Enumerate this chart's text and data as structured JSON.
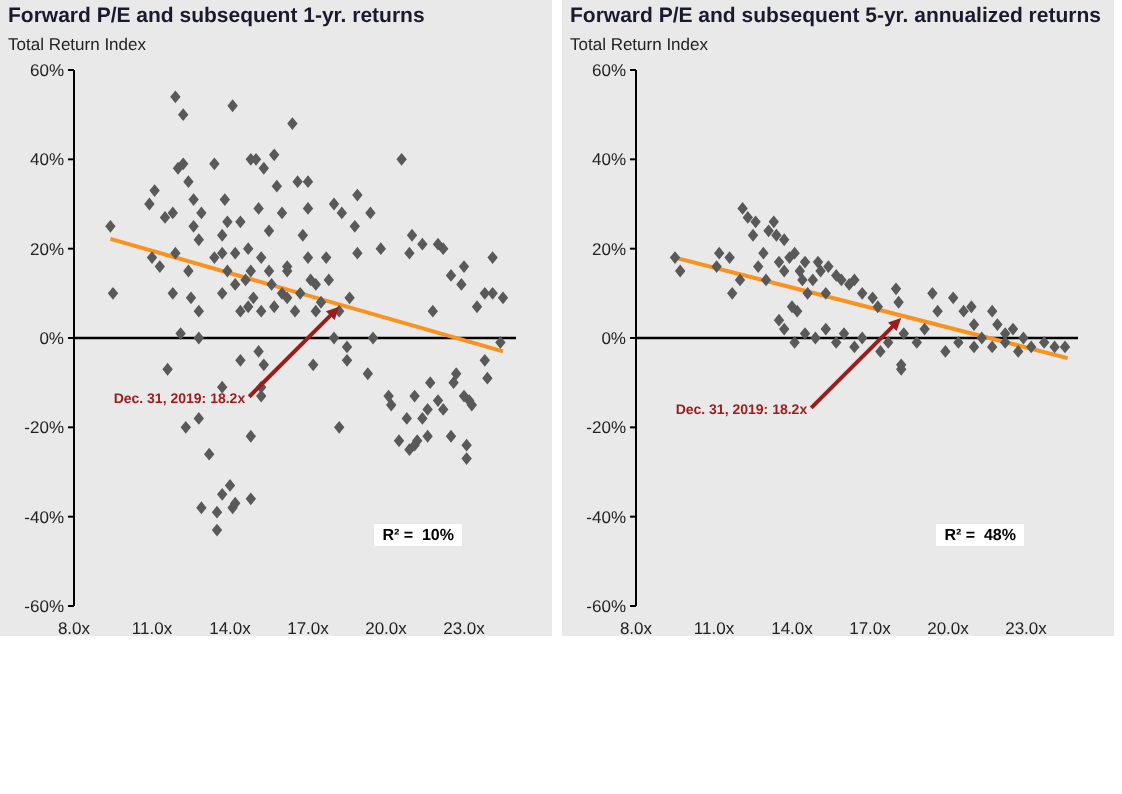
{
  "chart_data": [
    {
      "type": "scatter",
      "title": "Forward P/E and subsequent 1-yr. returns",
      "subtitle": "Total Return Index",
      "xlim": [
        8,
        25
      ],
      "xticks": [
        {
          "value": 8,
          "label": "8.0x"
        },
        {
          "value": 11,
          "label": "11.0x"
        },
        {
          "value": 14,
          "label": "14.0x"
        },
        {
          "value": 17,
          "label": "17.0x"
        },
        {
          "value": 20,
          "label": "20.0x"
        },
        {
          "value": 23,
          "label": "23.0x"
        }
      ],
      "ylim": [
        -60,
        60
      ],
      "yticks": [
        {
          "value": -60,
          "label": "-60%"
        },
        {
          "value": -40,
          "label": "-40%"
        },
        {
          "value": -20,
          "label": "-20%"
        },
        {
          "value": 0,
          "label": "0%"
        },
        {
          "value": 20,
          "label": "20%"
        },
        {
          "value": 40,
          "label": "40%"
        },
        {
          "value": 60,
          "label": "60%"
        }
      ],
      "ref_lines": [
        {
          "axis": "y",
          "value": 0,
          "color": "#000000"
        }
      ],
      "annotations": [
        {
          "text": "Dec. 31, 2019: 18.2x",
          "x": 18.2,
          "y": 7
        },
        "R² =  10%"
      ],
      "series": [
        {
          "type": "scatter",
          "marker": "diamond",
          "color": "#595959",
          "x": [
            9.4,
            9.5,
            10.9,
            11.1,
            11,
            11.3,
            11.5,
            11.8,
            11.9,
            11.8,
            12,
            12.2,
            11.9,
            12.2,
            12.4,
            12.6,
            12.6,
            12.9,
            12.8,
            12.4,
            12.5,
            12.8,
            13.4,
            13.4,
            13.7,
            13.8,
            13.9,
            14.1,
            14.2,
            14.4,
            14.6,
            14.7,
            14.8,
            15,
            15.1,
            15.2,
            15.3,
            15.5,
            15.6,
            15.7,
            15.8,
            16,
            16.2,
            16.2,
            16.4,
            16.6,
            16.8,
            17,
            17,
            17,
            17.1,
            17.3,
            17.7,
            17.8,
            18,
            18.2,
            18.3,
            18.6,
            18.8,
            18.9,
            18.9,
            19.4,
            19.8,
            20.6,
            20.9,
            21,
            21.4,
            21.8,
            22,
            22.2,
            22.5,
            22.9,
            23,
            23.5,
            23.8,
            24.1,
            24.1,
            24.5,
            13.7,
            14.2,
            14.4,
            14.8,
            14.9,
            15.2,
            15.5,
            15.7,
            16,
            16.2,
            16.5,
            16.7,
            17.3,
            17.5,
            13.7,
            13.9,
            14.7,
            11.6,
            12.3,
            12.8,
            13.2,
            12.9,
            13.5,
            13.5,
            13.7,
            14,
            14.2,
            14.1,
            13.7,
            14.4,
            14.8,
            14.8,
            15.2,
            15.1,
            15.3,
            15.2,
            17.2,
            18.2,
            18.5,
            18.5,
            18,
            19.3,
            19.5,
            20.1,
            20.2,
            20.5,
            20.8,
            20.9,
            21.1,
            21.2,
            21.1,
            21.4,
            21.6,
            21.6,
            21.7,
            22,
            22.2,
            22.5,
            22.6,
            22.7,
            23,
            23.1,
            23.1,
            23.2,
            23.3,
            23.8,
            23.9,
            24.4,
            12.1,
            12.8
          ],
          "values": [
            25,
            10,
            30,
            33,
            18,
            16,
            27,
            28,
            19,
            10,
            38,
            39,
            54,
            50,
            35,
            31,
            25,
            28,
            22,
            15,
            9,
            6,
            39,
            18,
            23,
            31,
            15,
            52,
            19,
            26,
            13,
            7,
            40,
            40,
            29,
            18,
            38,
            24,
            12,
            41,
            34,
            28,
            15,
            9,
            48,
            35,
            23,
            29,
            18,
            35,
            13,
            6,
            18,
            13,
            30,
            6,
            28,
            9,
            25,
            32,
            19,
            28,
            20,
            40,
            19,
            23,
            21,
            6,
            21,
            20,
            14,
            12,
            16,
            7,
            10,
            18,
            10,
            9,
            10,
            12,
            6,
            15,
            9,
            6,
            15,
            7,
            10,
            16,
            6,
            10,
            12,
            8,
            19,
            26,
            20,
            -7,
            -20,
            -18,
            -26,
            -38,
            -39,
            -43,
            -35,
            -33,
            -37,
            -38,
            -11,
            -5,
            -22,
            -36,
            -11,
            -3,
            -6,
            -13,
            -6,
            -20,
            -2,
            -5,
            0,
            -8,
            0,
            -13,
            -15,
            -23,
            -18,
            -25,
            -24,
            -23,
            -13,
            -18,
            -16,
            -22,
            -10,
            -14,
            -16,
            -22,
            -10,
            -8,
            -13,
            -24,
            -27,
            -14,
            -15,
            -5,
            -9,
            -1,
            1,
            0
          ]
        },
        {
          "type": "line",
          "color": "#f7931e",
          "x": [
            9.4,
            24.5
          ],
          "values": [
            22.2,
            -3
          ]
        }
      ]
    },
    {
      "type": "scatter",
      "title": "Forward P/E and subsequent 5-yr. annualized returns",
      "subtitle": "Total Return Index",
      "xlim": [
        8,
        25
      ],
      "xticks": [
        {
          "value": 8,
          "label": "8.0x"
        },
        {
          "value": 11,
          "label": "11.0x"
        },
        {
          "value": 14,
          "label": "14.0x"
        },
        {
          "value": 17,
          "label": "17.0x"
        },
        {
          "value": 20,
          "label": "20.0x"
        },
        {
          "value": 23,
          "label": "23.0x"
        }
      ],
      "ylim": [
        -60,
        60
      ],
      "yticks": [
        {
          "value": -60,
          "label": "-60%"
        },
        {
          "value": -40,
          "label": "-40%"
        },
        {
          "value": -20,
          "label": "-20%"
        },
        {
          "value": 0,
          "label": "0%"
        },
        {
          "value": 20,
          "label": "20%"
        },
        {
          "value": 40,
          "label": "40%"
        },
        {
          "value": 60,
          "label": "60%"
        }
      ],
      "ref_lines": [
        {
          "axis": "y",
          "value": 0,
          "color": "#000000"
        }
      ],
      "annotations": [
        {
          "text": "Dec. 31, 2019: 18.2x",
          "x": 18.2,
          "y": 4.5
        },
        "R² =  48%"
      ],
      "series": [
        {
          "type": "scatter",
          "marker": "diamond",
          "color": "#595959",
          "x": [
            9.5,
            9.7,
            11.1,
            11.2,
            11.6,
            11.7,
            12,
            12.1,
            12.3,
            12.5,
            12.6,
            12.7,
            12.9,
            13,
            13.1,
            13.3,
            13.4,
            13.5,
            13.7,
            13.7,
            13.9,
            14,
            14.1,
            14.2,
            14.3,
            14.4,
            14.5,
            14.6,
            14.8,
            15,
            15.1,
            15.3,
            15.4,
            15.7,
            15.9,
            16.2,
            16.4,
            16.7,
            17.1,
            17.3,
            18,
            18.1,
            19.4,
            19.6,
            20.2,
            20.6,
            20.9,
            21,
            21.7,
            21.9,
            22.2,
            22.5,
            22.9,
            13.5,
            13.7,
            14.1,
            14.5,
            14.9,
            15.3,
            15.7,
            16,
            16.4,
            16.7,
            17.4,
            17.7,
            18.2,
            18.2,
            18.3,
            18.8,
            19.1,
            19.9,
            20.4,
            21,
            21.3,
            21.7,
            22.2,
            22.7,
            23.2,
            23.7,
            24.1,
            24.5
          ],
          "values": [
            18,
            15,
            16,
            19,
            18,
            10,
            13,
            29,
            27,
            23,
            26,
            16,
            19,
            13,
            24,
            26,
            23,
            17,
            22,
            15,
            18,
            7,
            19,
            6,
            15,
            13,
            17,
            10,
            13,
            17,
            15,
            10,
            16,
            14,
            13,
            12,
            13,
            10,
            9,
            7,
            11,
            8,
            10,
            6,
            9,
            6,
            7,
            3,
            6,
            3,
            1,
            2,
            0,
            4,
            2,
            -1,
            1,
            0,
            2,
            -1,
            1,
            -2,
            0,
            -3,
            -1,
            -6,
            -7,
            1,
            -1,
            2,
            -3,
            -1,
            -2,
            0,
            -2,
            -1,
            -3,
            -2,
            -1,
            -2,
            -2
          ]
        },
        {
          "type": "line",
          "color": "#f7931e",
          "x": [
            9.5,
            24.6
          ],
          "values": [
            18,
            -4.5
          ]
        }
      ]
    }
  ]
}
